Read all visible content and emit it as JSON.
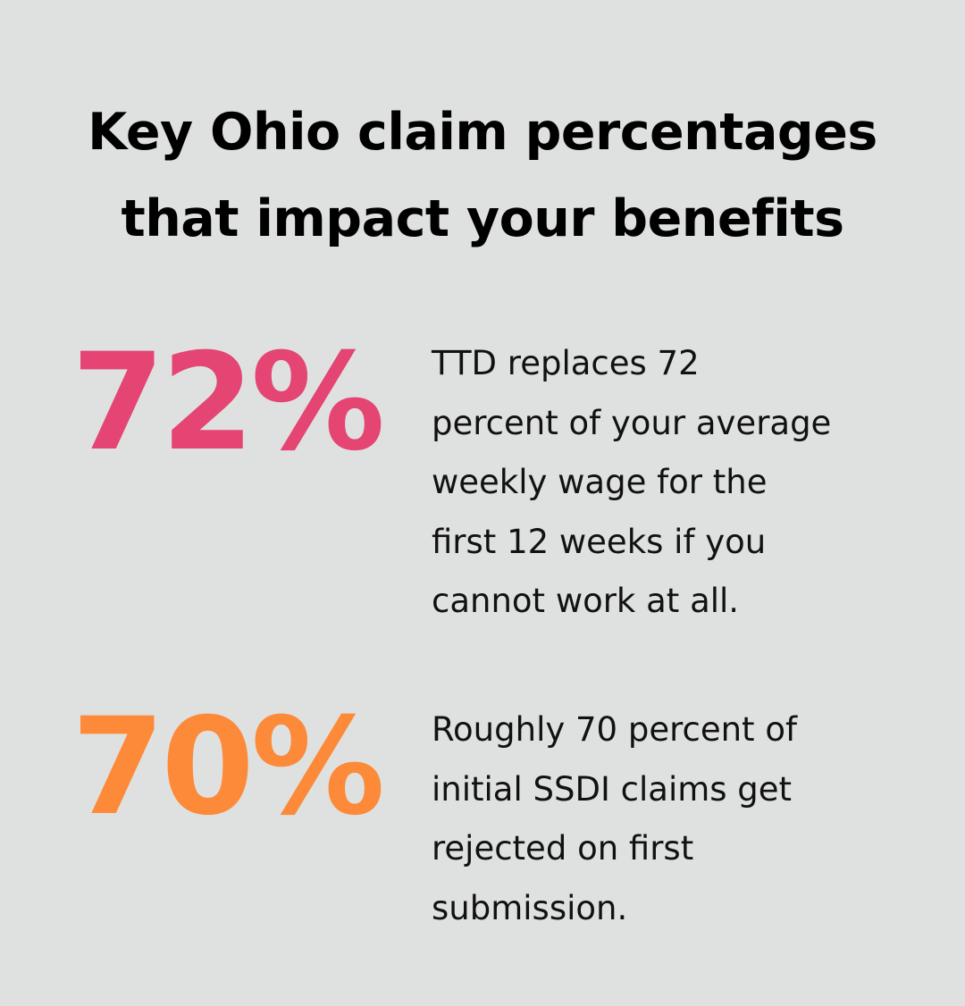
{
  "title": {
    "lines": [
      "Key Ohio claim percentages",
      "that impact your benefits"
    ]
  },
  "stats": [
    {
      "value": "72%",
      "color": "#e44573",
      "description_lines": [
        "TTD replaces 72",
        "percent of your average",
        "weekly wage for the",
        "first 12 weeks if you",
        "cannot work at all."
      ]
    },
    {
      "value": "70%",
      "color": "#fd8a38",
      "description_lines": [
        "Roughly 70 percent of",
        "initial SSDI claims get",
        "rejected on first",
        "submission."
      ]
    }
  ]
}
